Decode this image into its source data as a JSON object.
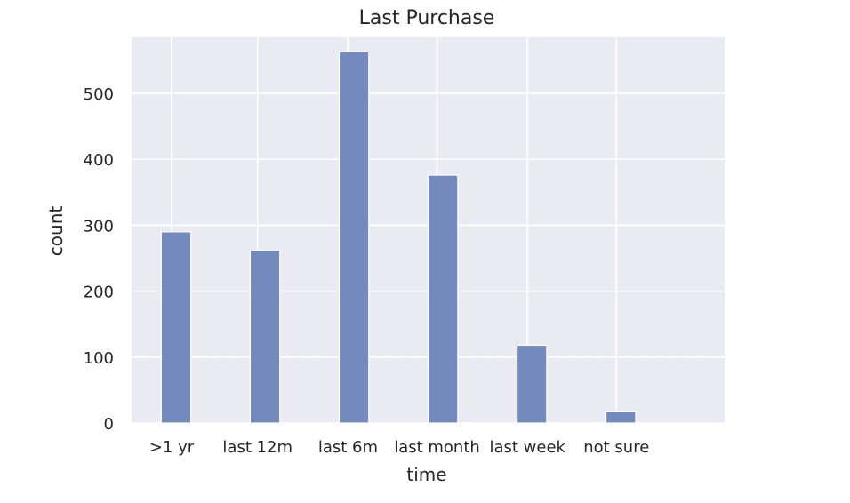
{
  "chart_data": {
    "type": "bar",
    "title": "Last Purchase",
    "xlabel": "time",
    "ylabel": "count",
    "categories": [
      ">1 yr",
      "last 12m",
      "last 6m",
      "last month",
      "last week",
      "not sure"
    ],
    "values": [
      290,
      262,
      563,
      376,
      118,
      17
    ],
    "ylim": [
      0,
      585
    ],
    "yticks": [
      0,
      100,
      200,
      300,
      400,
      500
    ],
    "grid": true,
    "bar_color": "#7489bd",
    "background_color": "#eaeaf2"
  }
}
